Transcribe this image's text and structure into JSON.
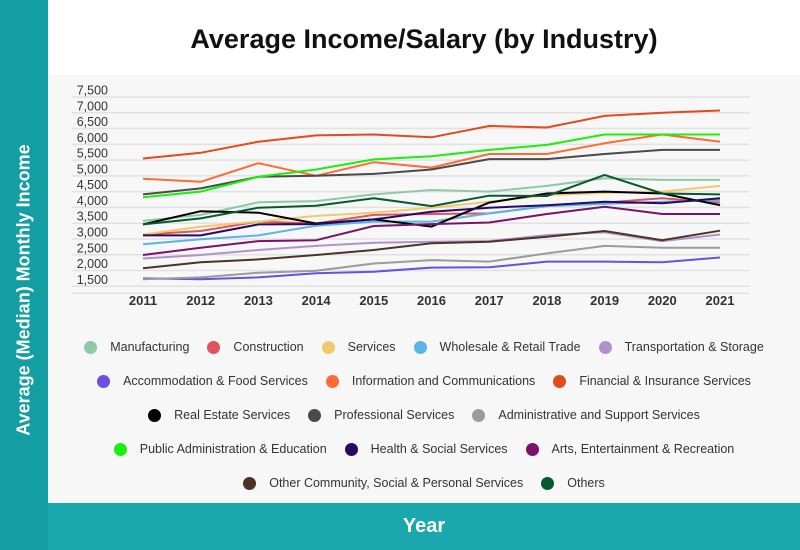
{
  "y_axis_title": "Average (Median) Monthly Income",
  "x_axis_title": "Year",
  "chart_data": {
    "type": "line",
    "title": "Average Income/Salary (by Industry)",
    "xlabel": "Year",
    "ylabel": "Average (Median) Monthly Income",
    "x": [
      "2011",
      "2012",
      "2013",
      "2014",
      "2015",
      "2016",
      "2017",
      "2018",
      "2019",
      "2020",
      "2021"
    ],
    "yticks": [
      "7,500",
      "7,000",
      "6,500",
      "6,000",
      "5,500",
      "5,000",
      "4,500",
      "4,000",
      "3,500",
      "3,000",
      "2,500",
      "2,000",
      "1,500"
    ],
    "ylim": [
      1500,
      7500
    ],
    "grid": true,
    "legend": "bottom",
    "series": [
      {
        "name": "Manufacturing",
        "color": "#8fc8a8",
        "values": [
          3350,
          3540,
          3940,
          3980,
          4190,
          4330,
          4280,
          4460,
          4700,
          4650,
          4650
        ]
      },
      {
        "name": "Construction",
        "color": "#e0535c",
        "values": [
          2920,
          3030,
          3330,
          3270,
          3540,
          3570,
          3590,
          3820,
          3930,
          4070,
          3930
        ]
      },
      {
        "name": "Services",
        "color": "#f0c96a",
        "values": [
          2920,
          3170,
          3330,
          3510,
          3610,
          3770,
          3960,
          4170,
          4240,
          4280,
          4460
        ]
      },
      {
        "name": "Wholesale & Retail Trade",
        "color": "#5ab4e5",
        "values": [
          2610,
          2770,
          2890,
          3200,
          3330,
          3330,
          3590,
          3820,
          3890,
          3960,
          4010
        ]
      },
      {
        "name": "Transportation & Storage",
        "color": "#b092c8",
        "values": [
          2160,
          2270,
          2430,
          2560,
          2660,
          2690,
          2710,
          2900,
          2990,
          2710,
          2920
        ]
      },
      {
        "name": "Accommodation & Food Services",
        "color": "#6a4fe0",
        "values": [
          1530,
          1500,
          1560,
          1690,
          1740,
          1870,
          1880,
          2060,
          2060,
          2040,
          2190
        ]
      },
      {
        "name": "Information and Communications",
        "color": "#ff6a35",
        "values": [
          4690,
          4590,
          5180,
          4780,
          5210,
          5040,
          5470,
          5470,
          5810,
          6090,
          5860
        ]
      },
      {
        "name": "Financial & Insurance Services",
        "color": "#e34a1d",
        "values": [
          5330,
          5510,
          5860,
          6060,
          6090,
          6000,
          6360,
          6310,
          6680,
          6780,
          6850
        ]
      },
      {
        "name": "Real Estate Services",
        "color": "#000000",
        "values": [
          3240,
          3660,
          3610,
          3270,
          3400,
          3170,
          3930,
          4220,
          4280,
          4220,
          3850
        ]
      },
      {
        "name": "Professional Services",
        "color": "#4a4a4a",
        "values": [
          4190,
          4380,
          4750,
          4780,
          4840,
          4980,
          5310,
          5310,
          5470,
          5600,
          5600
        ]
      },
      {
        "name": "Administrative and Support Services",
        "color": "#9b9b9b",
        "values": [
          1500,
          1560,
          1710,
          1770,
          2000,
          2110,
          2060,
          2320,
          2560,
          2500,
          2500
        ]
      },
      {
        "name": "Public Administration & Education",
        "color": "#19f00c",
        "values": [
          4100,
          4280,
          4750,
          4980,
          5300,
          5400,
          5600,
          5760,
          6090,
          6090,
          6090
        ]
      },
      {
        "name": "Health & Social Services",
        "color": "#250c63",
        "values": [
          2890,
          2890,
          3240,
          3250,
          3400,
          3640,
          3770,
          3850,
          3960,
          3910,
          4070
        ]
      },
      {
        "name": "Arts, Entertainment & Recreation",
        "color": "#7a126b",
        "values": [
          2270,
          2500,
          2710,
          2740,
          3190,
          3250,
          3300,
          3570,
          3800,
          3570,
          3570
        ]
      },
      {
        "name": "Other Community, Social & Personal Services",
        "color": "#4b3426",
        "values": [
          1850,
          2040,
          2130,
          2270,
          2430,
          2640,
          2690,
          2850,
          3030,
          2740,
          3040
        ]
      },
      {
        "name": "Others",
        "color": "#075a30",
        "values": [
          3240,
          3430,
          3770,
          3830,
          4070,
          3820,
          4150,
          4140,
          4810,
          4220,
          4190
        ]
      }
    ]
  },
  "colors": {
    "sidebar": "#139ea3",
    "bottom_bar": "#1aa7ad"
  }
}
